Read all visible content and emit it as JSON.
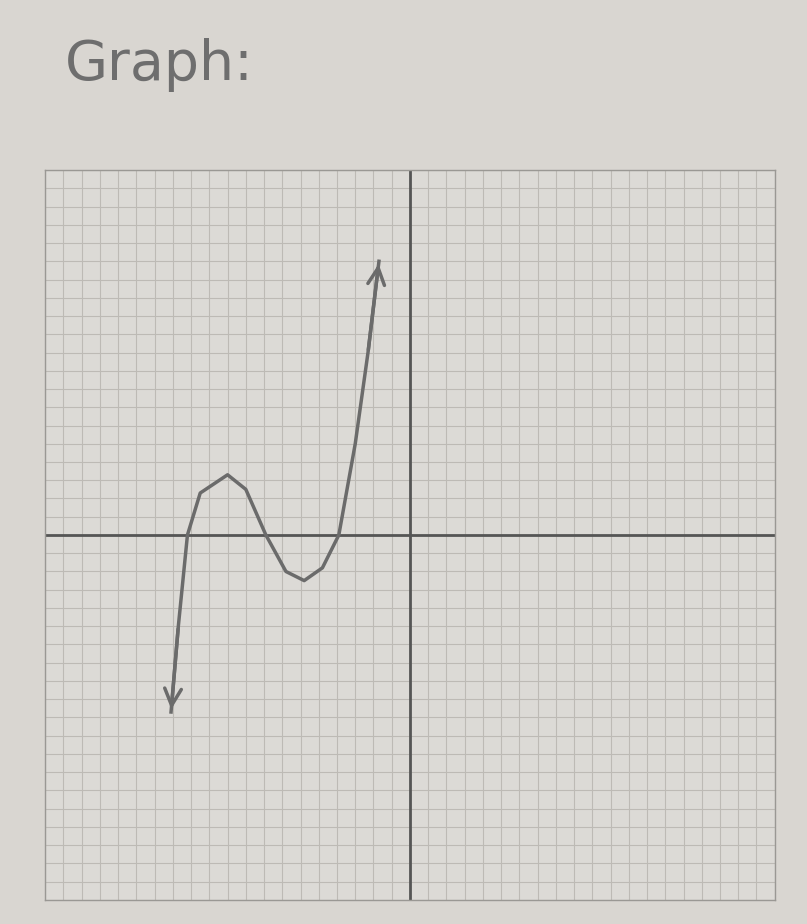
{
  "chart_data": {
    "type": "line",
    "title": "Graph:",
    "x": [
      -13.1,
      -12.7,
      -12.2,
      -11.5,
      -10.0,
      -9.0,
      -7.9,
      -6.8,
      -5.8,
      -4.8,
      -3.9,
      -3.0,
      -2.3,
      -1.7
    ],
    "values": [
      -9.7,
      -5.0,
      0.0,
      2.3,
      3.3,
      2.5,
      0.0,
      -2.0,
      -2.5,
      -1.8,
      0.0,
      5.0,
      10.0,
      15.0
    ],
    "color": "#6b6b6b",
    "line_style": "solid",
    "xlim": [
      -20,
      20
    ],
    "ylim": [
      -20,
      20
    ],
    "xticks": [
      -20,
      -19,
      -18,
      -17,
      -16,
      -15,
      -14,
      -13,
      -12,
      -11,
      -10,
      -9,
      -8,
      -7,
      -6,
      -5,
      -4,
      -3,
      -2,
      -1,
      0,
      1,
      2,
      3,
      4,
      5,
      6,
      7,
      8,
      9,
      10,
      11,
      12,
      13,
      14,
      15,
      16,
      17,
      18,
      19,
      20
    ],
    "yticks": [
      -20,
      -19,
      -18,
      -17,
      -16,
      -15,
      -14,
      -13,
      -12,
      -11,
      -10,
      -9,
      -8,
      -7,
      -6,
      -5,
      -4,
      -3,
      -2,
      -1,
      0,
      1,
      2,
      3,
      4,
      5,
      6,
      7,
      8,
      9,
      10,
      11,
      12,
      13,
      14,
      15,
      16,
      17,
      18,
      19,
      20
    ],
    "grid": true,
    "tick_labels": false
  }
}
